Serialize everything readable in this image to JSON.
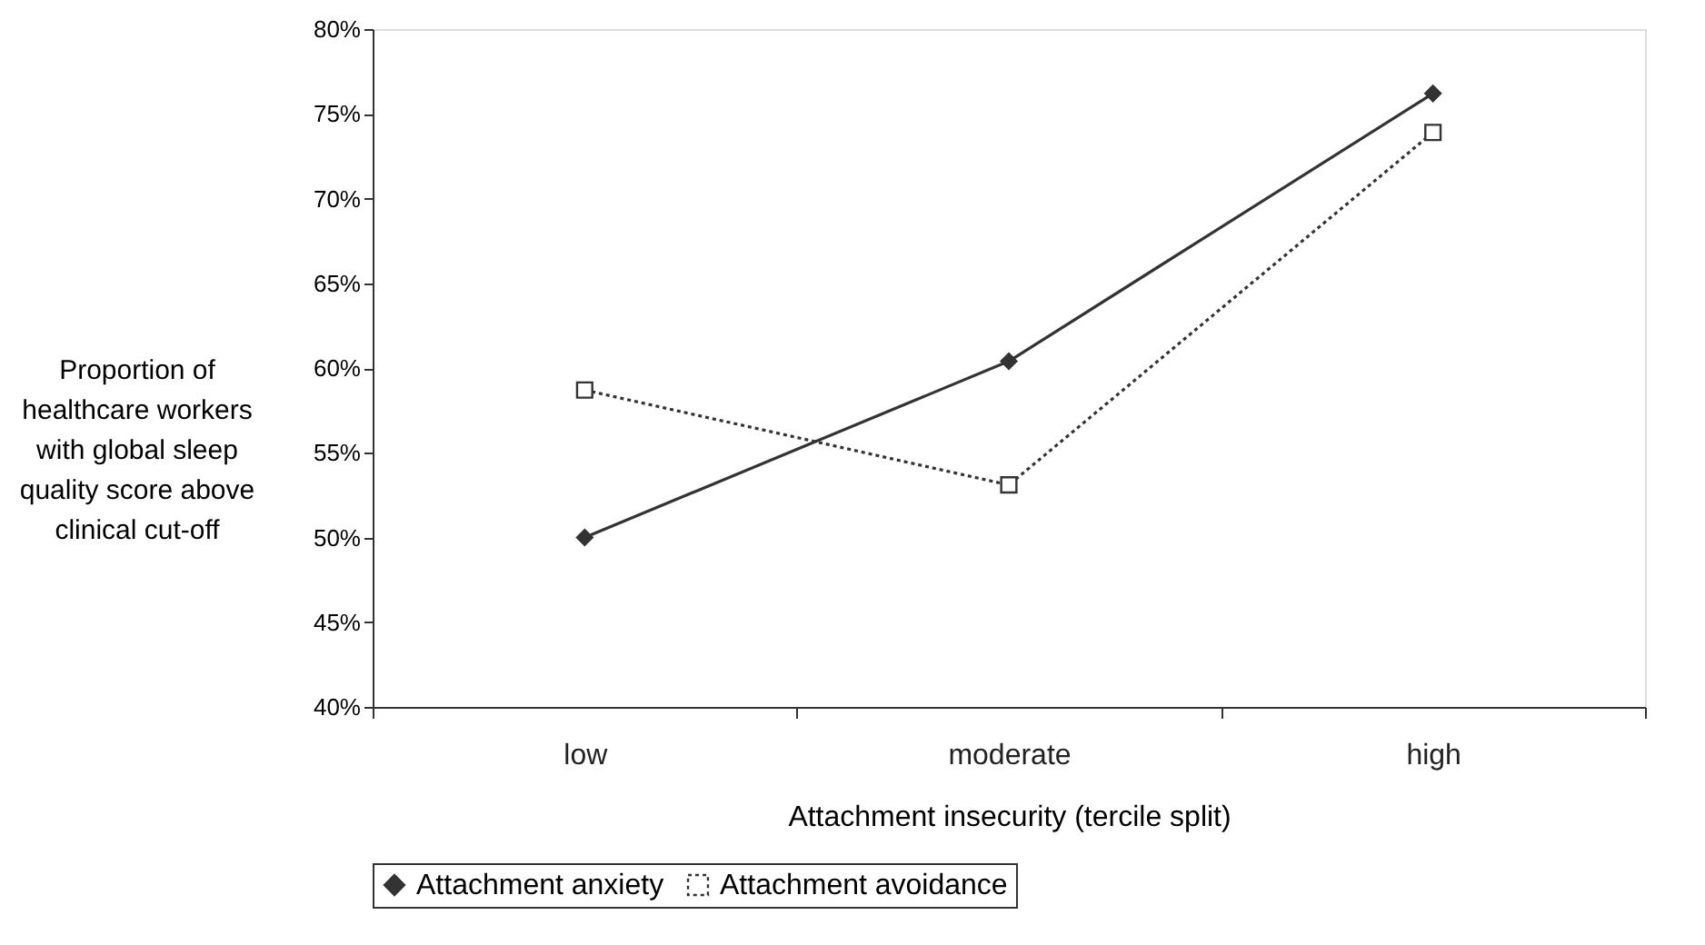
{
  "chart_data": {
    "type": "line",
    "categories": [
      "low",
      "moderate",
      "high"
    ],
    "xlabel": "Attachment insecurity (tercile split)",
    "ylabel": "Proportion of\nhealthcare workers\nwith global sleep\nquality score above\nclinical cut-off",
    "ylim": [
      0.4,
      0.8
    ],
    "yticks": [
      {
        "value": 0.4,
        "label": "40%"
      },
      {
        "value": 0.45,
        "label": "45%"
      },
      {
        "value": 0.5,
        "label": "50%"
      },
      {
        "value": 0.55,
        "label": "55%"
      },
      {
        "value": 0.6,
        "label": "60%"
      },
      {
        "value": 0.65,
        "label": "65%"
      },
      {
        "value": 0.7,
        "label": "70%"
      },
      {
        "value": 0.75,
        "label": "75%"
      },
      {
        "value": 0.8,
        "label": "80%"
      }
    ],
    "grid": false,
    "legend": "bottom",
    "series": [
      {
        "name": "Attachment anxiety",
        "color": "#333333",
        "values": [
          0.5,
          0.604,
          0.762
        ],
        "marker": "diamond",
        "line_style": "solid"
      },
      {
        "name": "Attachment avoidance",
        "color": "#333333",
        "values": [
          0.587,
          0.531,
          0.739
        ],
        "marker": "square",
        "line_style": "dotted"
      }
    ]
  }
}
